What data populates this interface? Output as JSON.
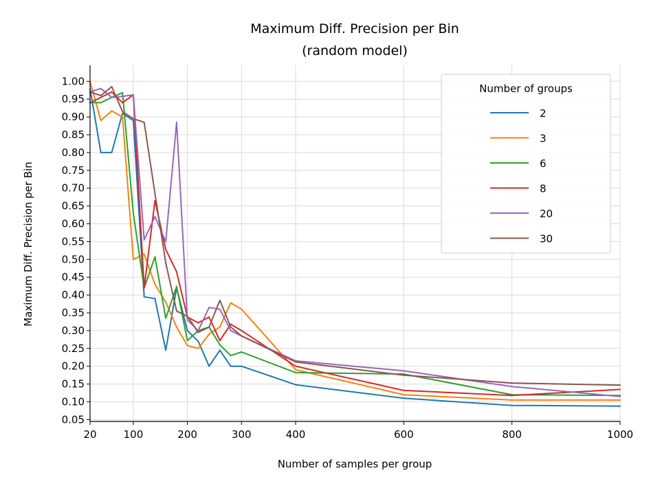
{
  "chart_data": {
    "type": "line",
    "title": "Maximum Diff. Precision per Bin",
    "subtitle": "(random model)",
    "xlabel": "Number of samples per group",
    "ylabel": "Maximum Diff. Precision per Bin",
    "xlim": [
      20,
      1000
    ],
    "ylim": [
      0.045,
      1.045
    ],
    "x_ticks": [
      20,
      100,
      200,
      300,
      400,
      600,
      800,
      1000
    ],
    "y_ticks": [
      0.05,
      0.1,
      0.15,
      0.2,
      0.25,
      0.3,
      0.35,
      0.4,
      0.45,
      0.5,
      0.55,
      0.6,
      0.65,
      0.7,
      0.75,
      0.8,
      0.85,
      0.9,
      0.95,
      1.0
    ],
    "x_tick_labels": [
      "20",
      "100",
      "200",
      "300",
      "400",
      "600",
      "800",
      "1000"
    ],
    "y_tick_labels": [
      "0.05",
      "0.10",
      "0.15",
      "0.20",
      "0.25",
      "0.30",
      "0.35",
      "0.40",
      "0.45",
      "0.50",
      "0.55",
      "0.60",
      "0.65",
      "0.70",
      "0.75",
      "0.80",
      "0.85",
      "0.90",
      "0.95",
      "1.00"
    ],
    "grid": true,
    "legend": {
      "title": "Number of groups",
      "position": "top-right"
    },
    "x": [
      20,
      40,
      60,
      80,
      100,
      120,
      140,
      160,
      180,
      200,
      220,
      240,
      260,
      280,
      300,
      400,
      600,
      800,
      1000
    ],
    "series": [
      {
        "name": "2",
        "color": "#1f77b4",
        "values": [
          0.98,
          0.8,
          0.8,
          0.91,
          0.89,
          0.395,
          0.39,
          0.245,
          0.42,
          0.3,
          0.27,
          0.2,
          0.245,
          0.2,
          0.2,
          0.148,
          0.11,
          0.09,
          0.088
        ]
      },
      {
        "name": "3",
        "color": "#ff7f0e",
        "values": [
          1.0,
          0.89,
          0.917,
          0.9,
          0.5,
          0.515,
          0.43,
          0.38,
          0.31,
          0.258,
          0.25,
          0.29,
          0.31,
          0.378,
          0.36,
          0.19,
          0.12,
          0.105,
          0.105
        ]
      },
      {
        "name": "6",
        "color": "#2ca02c",
        "values": [
          0.94,
          0.94,
          0.955,
          0.968,
          0.63,
          0.42,
          0.507,
          0.335,
          0.424,
          0.272,
          0.3,
          0.31,
          0.26,
          0.23,
          0.24,
          0.182,
          0.178,
          0.12,
          0.118
        ]
      },
      {
        "name": "8",
        "color": "#d62728",
        "values": [
          0.94,
          0.955,
          0.97,
          0.94,
          0.962,
          0.42,
          0.665,
          0.528,
          0.465,
          0.338,
          0.322,
          0.338,
          0.272,
          0.318,
          0.3,
          0.2,
          0.132,
          0.118,
          0.135
        ]
      },
      {
        "name": "20",
        "color": "#9467bd",
        "values": [
          0.97,
          0.98,
          0.955,
          0.958,
          0.962,
          0.555,
          0.62,
          0.55,
          0.885,
          0.33,
          0.3,
          0.365,
          0.36,
          0.3,
          0.285,
          0.215,
          0.187,
          0.143,
          0.115
        ]
      },
      {
        "name": "30",
        "color": "#8c564b",
        "values": [
          0.97,
          0.96,
          0.985,
          0.915,
          0.895,
          0.885,
          0.685,
          0.49,
          0.355,
          0.34,
          0.295,
          0.31,
          0.385,
          0.31,
          0.285,
          0.212,
          0.175,
          0.153,
          0.147
        ]
      }
    ]
  }
}
